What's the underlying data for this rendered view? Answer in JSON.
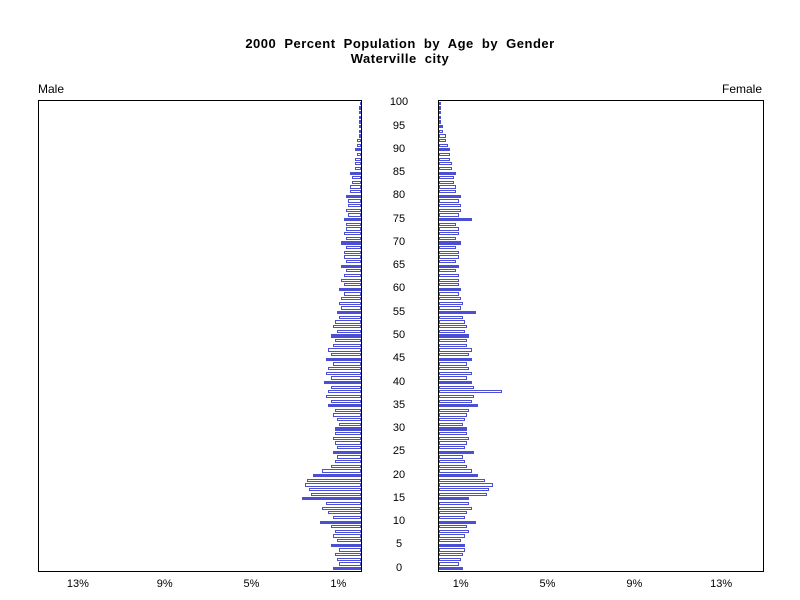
{
  "labels": {
    "male": "Male",
    "female": "Female"
  },
  "chart_data": {
    "type": "bar",
    "subtype": "population_pyramid",
    "title": "2000 Percent Population by Age by Gender",
    "subtitle": "Waterville city",
    "unit": "percent_of_population",
    "age_min": 0,
    "age_max": 100,
    "age_axis_tick_labels": [
      "0",
      "5",
      "10",
      "15",
      "20",
      "25",
      "30",
      "35",
      "40",
      "45",
      "50",
      "55",
      "60",
      "65",
      "70",
      "75",
      "80",
      "85",
      "90",
      "95",
      "100"
    ],
    "highlight_rule": "bars at ages divisible by 5 are solid filled, others hollow outlined",
    "colors": {
      "bar_fill": "#4a4fd4",
      "bar_outline": "#4a4fd4",
      "hollow_bar_fill": "#ffffff",
      "axis": "#000000",
      "background": "#ffffff"
    },
    "x_axis": {
      "max_percent_displayed": 14.5,
      "ticks_left": [
        {
          "label": "13%",
          "percent": 13
        },
        {
          "label": "9%",
          "percent": 9
        },
        {
          "label": "5%",
          "percent": 5
        },
        {
          "label": "1%",
          "percent": 1
        }
      ],
      "ticks_right": [
        {
          "label": "1%",
          "percent": 1
        },
        {
          "label": "5%",
          "percent": 5
        },
        {
          "label": "9%",
          "percent": 9
        },
        {
          "label": "13%",
          "percent": 13
        }
      ]
    },
    "series": [
      {
        "name": "Male",
        "side": "left",
        "values": [
          1.3,
          1.0,
          1.1,
          1.2,
          1.0,
          1.4,
          1.1,
          1.3,
          1.2,
          1.4,
          1.9,
          1.3,
          1.5,
          1.8,
          1.6,
          2.7,
          2.3,
          2.4,
          2.6,
          2.5,
          2.2,
          1.8,
          1.4,
          1.2,
          1.1,
          1.3,
          1.1,
          1.2,
          1.3,
          1.2,
          1.2,
          1.0,
          1.1,
          1.3,
          1.2,
          1.5,
          1.4,
          1.6,
          1.5,
          1.4,
          1.7,
          1.4,
          1.6,
          1.5,
          1.3,
          1.6,
          1.4,
          1.5,
          1.3,
          1.2,
          1.4,
          1.1,
          1.3,
          1.2,
          1.0,
          1.1,
          0.9,
          1.0,
          0.9,
          0.8,
          1.0,
          0.8,
          0.9,
          0.8,
          0.7,
          0.9,
          0.7,
          0.8,
          0.8,
          0.7,
          0.9,
          0.7,
          0.8,
          0.7,
          0.7,
          0.8,
          0.6,
          0.7,
          0.6,
          0.6,
          0.7,
          0.5,
          0.5,
          0.4,
          0.4,
          0.5,
          0.3,
          0.3,
          0.3,
          0.2,
          0.3,
          0.2,
          0.2,
          0.1,
          0.1,
          0.1,
          0.05,
          0.05,
          0.03,
          0.02,
          0.02
        ]
      },
      {
        "name": "Female",
        "side": "right",
        "values": [
          1.1,
          0.9,
          1.0,
          1.1,
          1.2,
          1.2,
          1.0,
          1.2,
          1.4,
          1.3,
          1.7,
          1.2,
          1.3,
          1.5,
          1.4,
          1.4,
          2.2,
          2.3,
          2.5,
          2.1,
          1.8,
          1.5,
          1.3,
          1.2,
          1.1,
          1.6,
          1.2,
          1.3,
          1.4,
          1.3,
          1.3,
          1.1,
          1.2,
          1.3,
          1.4,
          1.8,
          1.5,
          1.6,
          2.9,
          1.6,
          1.5,
          1.3,
          1.5,
          1.4,
          1.3,
          1.5,
          1.4,
          1.5,
          1.3,
          1.3,
          1.4,
          1.2,
          1.3,
          1.2,
          1.1,
          1.7,
          1.0,
          1.1,
          1.0,
          0.9,
          1.0,
          0.9,
          0.9,
          0.9,
          0.8,
          0.9,
          0.8,
          0.9,
          0.9,
          0.8,
          1.0,
          0.8,
          0.9,
          0.9,
          0.8,
          1.5,
          0.9,
          1.0,
          1.0,
          0.9,
          1.0,
          0.8,
          0.8,
          0.7,
          0.7,
          0.8,
          0.6,
          0.6,
          0.5,
          0.5,
          0.5,
          0.4,
          0.3,
          0.3,
          0.2,
          0.2,
          0.1,
          0.1,
          0.08,
          0.05,
          0.1
        ]
      }
    ]
  }
}
